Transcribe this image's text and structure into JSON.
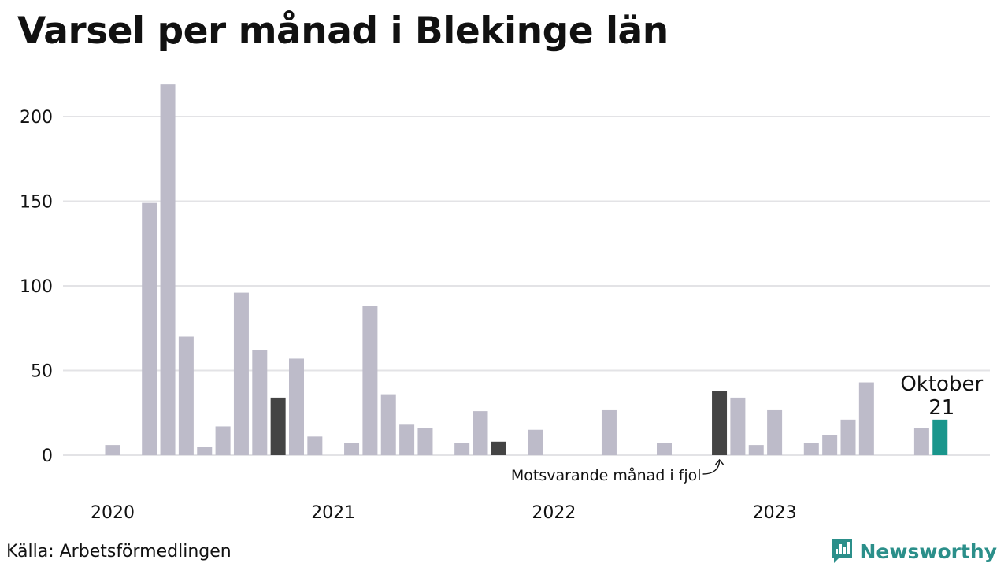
{
  "chart_data": {
    "type": "bar",
    "title": "Varsel per månad i Blekinge län",
    "xlabel": "",
    "ylabel": "",
    "ylim": [
      0,
      225
    ],
    "yticks": [
      0,
      50,
      100,
      150,
      200
    ],
    "grid": true,
    "x_year_labels": [
      {
        "label": "2020",
        "month_index": 0
      },
      {
        "label": "2021",
        "month_index": 12
      },
      {
        "label": "2022",
        "month_index": 24
      },
      {
        "label": "2023",
        "month_index": 36
      }
    ],
    "months": [
      "2020-01",
      "2020-02",
      "2020-03",
      "2020-04",
      "2020-05",
      "2020-06",
      "2020-07",
      "2020-08",
      "2020-09",
      "2020-10",
      "2020-11",
      "2020-12",
      "2021-01",
      "2021-02",
      "2021-03",
      "2021-04",
      "2021-05",
      "2021-06",
      "2021-07",
      "2021-08",
      "2021-09",
      "2021-10",
      "2021-11",
      "2021-12",
      "2022-01",
      "2022-02",
      "2022-03",
      "2022-04",
      "2022-05",
      "2022-06",
      "2022-07",
      "2022-08",
      "2022-09",
      "2022-10",
      "2022-11",
      "2022-12",
      "2023-01",
      "2023-02",
      "2023-03",
      "2023-04",
      "2023-05",
      "2023-06",
      "2023-07",
      "2023-08",
      "2023-09",
      "2023-10"
    ],
    "values": [
      6,
      0,
      149,
      219,
      70,
      5,
      17,
      96,
      62,
      34,
      57,
      11,
      0,
      7,
      88,
      36,
      18,
      16,
      0,
      7,
      26,
      8,
      0,
      15,
      0,
      0,
      0,
      27,
      0,
      0,
      7,
      0,
      0,
      38,
      34,
      6,
      27,
      0,
      7,
      12,
      21,
      43,
      0,
      0,
      16,
      21
    ],
    "highlight_prior_october_indices": [
      9,
      21,
      33
    ],
    "current_index": 45,
    "colors": {
      "bar": "#bdbbc9",
      "prior_october": "#444444",
      "current": "#1a968c",
      "grid": "#e3e3e6"
    },
    "callout": {
      "label": "Oktober",
      "value": "21"
    },
    "annotation": "Motsvarande månad i fjol"
  },
  "footer": {
    "source": "Källa: Arbetsförmedlingen",
    "brand": "Newsworthy",
    "brand_icon": "newsworthy-logo-icon",
    "brand_color": "#2b8f8a"
  }
}
